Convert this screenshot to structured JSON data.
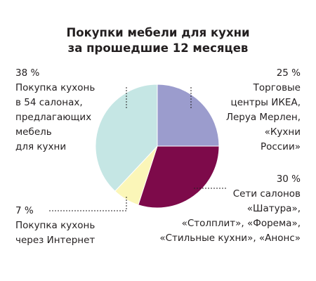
{
  "chart_data": {
    "type": "pie",
    "title": [
      "Покупки мебели для кухни",
      "за прошедшие 12 месяцев"
    ],
    "slices": [
      {
        "value": 25,
        "label": "25 %",
        "text": [
          "Торговые",
          "центры ИКЕА,",
          "Леруа Мерлен,",
          "«Кухни",
          "России»"
        ],
        "color": "#9b9ccd"
      },
      {
        "value": 30,
        "label": "30 %",
        "text": [
          "Сети салонов",
          "«Шатура»,",
          "«Столплит», «Форема»,",
          "«Стильные кухни», «Анонс»"
        ],
        "color": "#7d0a4a"
      },
      {
        "value": 7,
        "label": "7 %",
        "text": [
          "Покупка кухонь",
          "через Интернет"
        ],
        "color": "#fbf6b8"
      },
      {
        "value": 38,
        "label": "38 %",
        "text": [
          "Покупка кухонь",
          "в 54 салонах,",
          "предлагающих",
          "мебель",
          "для кухни"
        ],
        "color": "#c5e6e4"
      }
    ]
  }
}
